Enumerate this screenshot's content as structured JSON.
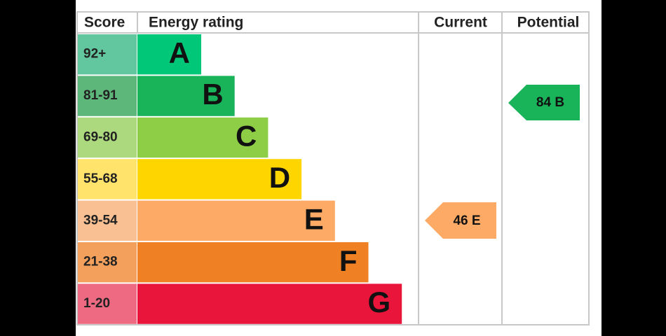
{
  "header": {
    "score": "Score",
    "energy_rating": "Energy rating",
    "current": "Current",
    "potential": "Potential"
  },
  "bands": [
    {
      "score": "92+",
      "letter": "A"
    },
    {
      "score": "81-91",
      "letter": "B"
    },
    {
      "score": "69-80",
      "letter": "C"
    },
    {
      "score": "55-68",
      "letter": "D"
    },
    {
      "score": "39-54",
      "letter": "E"
    },
    {
      "score": "21-38",
      "letter": "F"
    },
    {
      "score": "1-20",
      "letter": "G"
    }
  ],
  "current": {
    "label": "46 E"
  },
  "potential": {
    "label": "84 B"
  }
}
